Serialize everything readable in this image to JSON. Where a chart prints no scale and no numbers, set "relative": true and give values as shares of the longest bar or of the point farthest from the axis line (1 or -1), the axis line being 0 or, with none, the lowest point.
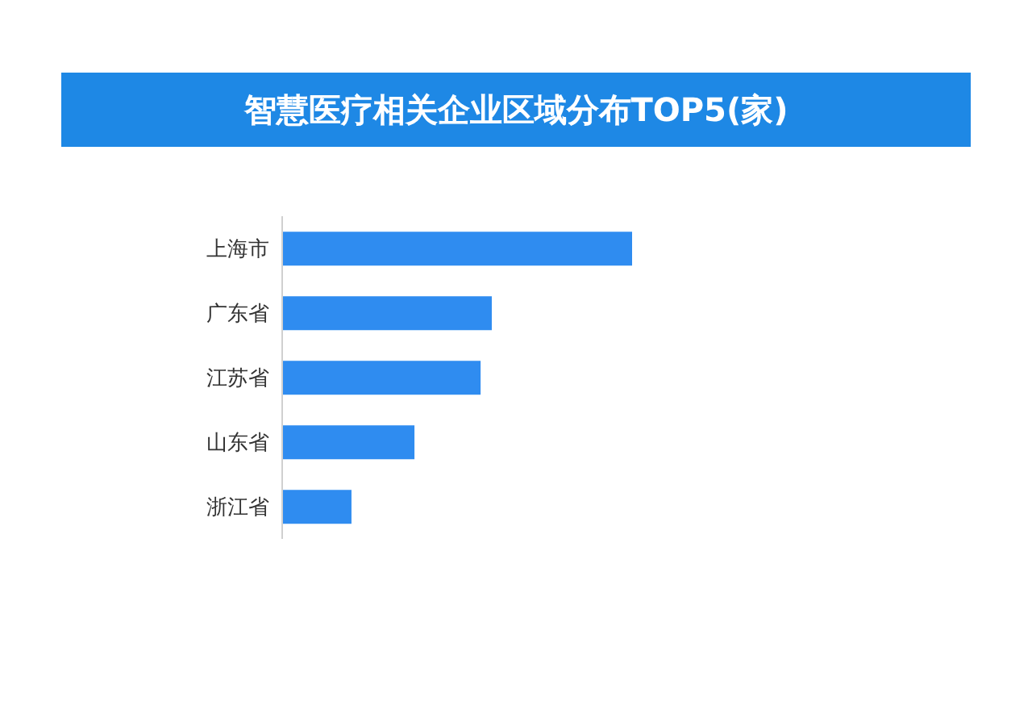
{
  "chart_data": {
    "type": "bar",
    "orientation": "horizontal",
    "relative": true,
    "title": "智慧医疗相关企业区域分布TOP5(家)",
    "categories": [
      "上海市",
      "广东省",
      "江苏省",
      "山东省",
      "浙江省"
    ],
    "values": [
      1,
      0.599,
      0.567,
      0.378,
      0.198
    ],
    "color": "#2f8cf0",
    "grid": false,
    "legend": false
  }
}
